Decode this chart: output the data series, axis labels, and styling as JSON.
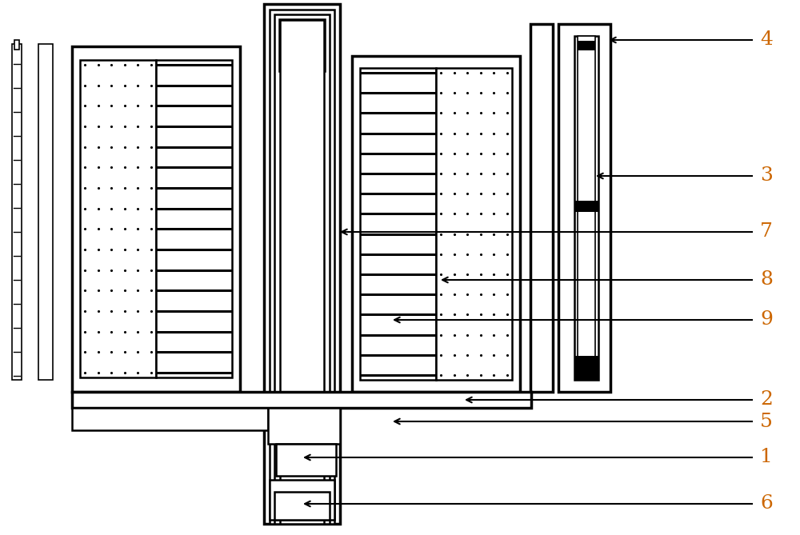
{
  "fig_width": 10.0,
  "fig_height": 6.69,
  "dpi": 100,
  "bg_color": "#ffffff",
  "line_color": "#000000",
  "label_color": "#cc6600",
  "lw_thick": 2.5,
  "lw_med": 1.8,
  "lw_thin": 1.2
}
